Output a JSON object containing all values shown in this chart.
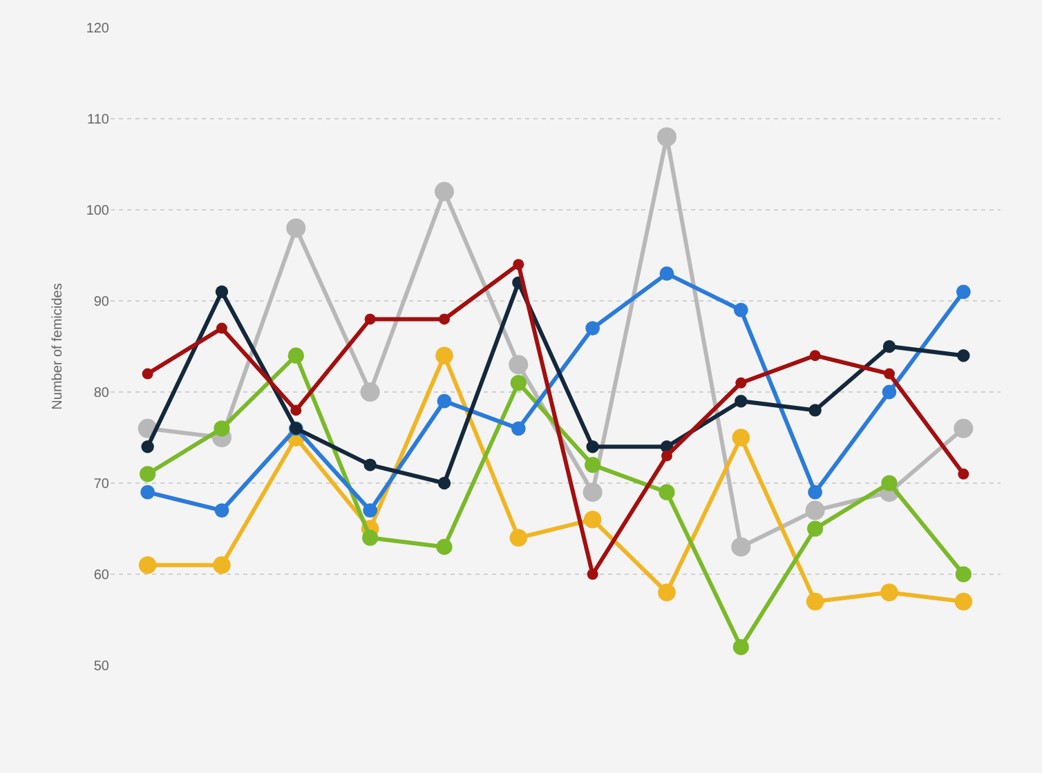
{
  "chart_data": {
    "type": "line",
    "ylabel": "Number of femicides",
    "categories": [
      null,
      null,
      null,
      null,
      null,
      null,
      null,
      null,
      null,
      null,
      null,
      null
    ],
    "ylim": [
      50,
      120
    ],
    "yticks": [
      50,
      60,
      70,
      80,
      90,
      100,
      110,
      120
    ],
    "grid": "y",
    "marker": "circle",
    "line_style": "solid",
    "tick_labels": "y",
    "series": [
      {
        "color": "#b8b8b8",
        "values": [
          76,
          75,
          98,
          80,
          102,
          83,
          69,
          108,
          63,
          67,
          69,
          76
        ]
      },
      {
        "color": "#f0b523",
        "values": [
          61,
          61,
          75,
          65,
          84,
          64,
          66,
          58,
          75,
          57,
          58,
          57
        ]
      },
      {
        "color": "#7ab929",
        "values": [
          71,
          76,
          84,
          64,
          63,
          81,
          72,
          69,
          52,
          65,
          70,
          60
        ]
      },
      {
        "color": "#2b7bd9",
        "values": [
          69,
          67,
          76,
          67,
          79,
          76,
          87,
          93,
          89,
          69,
          80,
          91
        ]
      },
      {
        "color": "#14283c",
        "values": [
          74,
          91,
          76,
          72,
          70,
          92,
          74,
          74,
          79,
          78,
          85,
          84
        ]
      },
      {
        "color": "#a30f0f",
        "values": [
          82,
          87,
          78,
          88,
          88,
          94,
          60,
          73,
          81,
          84,
          82,
          71
        ]
      }
    ]
  }
}
